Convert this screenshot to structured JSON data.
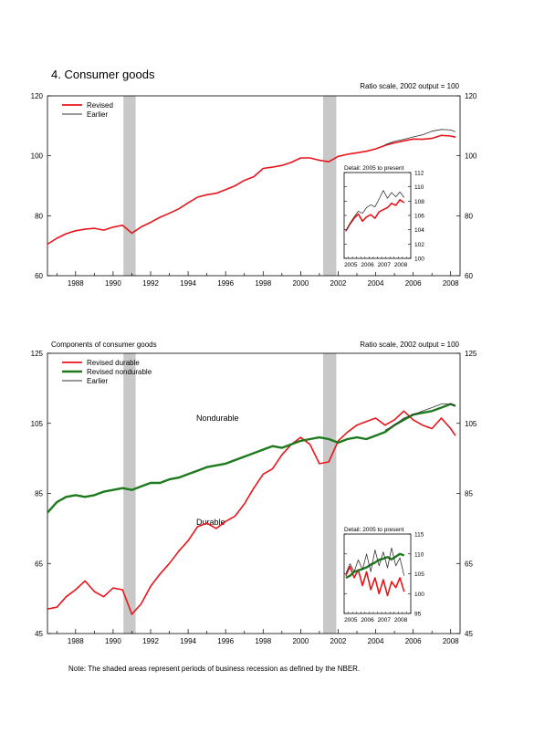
{
  "page": {
    "title": "4. Consumer goods",
    "note": "Note: The shaded areas represent periods of business recession as defined by the NBER."
  },
  "colors": {
    "revised": "#e8151b",
    "earlier": "#333333",
    "nondurable": "#1d7a1d",
    "recession": "#c8c8c8"
  },
  "chart_data": [
    {
      "type": "line",
      "scale_note": "Ratio scale, 2002 output = 100",
      "ylim": [
        60,
        120
      ],
      "yticks": [
        60,
        80,
        100,
        120
      ],
      "xlim": [
        1986.5,
        2008.5
      ],
      "xticks": [
        1988,
        1990,
        1992,
        1994,
        1996,
        1998,
        2000,
        2002,
        2004,
        2006,
        2008
      ],
      "recessions": [
        [
          1990.55,
          1991.2
        ],
        [
          2001.2,
          2001.9
        ]
      ],
      "legend": [
        "Revised",
        "Earlier"
      ],
      "series": [
        {
          "name": "Revised",
          "x": [
            1986.5,
            1987,
            1987.5,
            1988,
            1988.5,
            1989,
            1989.5,
            1990,
            1990.5,
            1991,
            1991.5,
            1992,
            1992.5,
            1993,
            1993.5,
            1994,
            1994.5,
            1995,
            1995.5,
            1996,
            1996.5,
            1997,
            1997.5,
            1998,
            1998.5,
            1999,
            1999.5,
            2000,
            2000.5,
            2001,
            2001.5,
            2002,
            2002.5,
            2003,
            2003.5,
            2004,
            2004.5,
            2005,
            2005.5,
            2006,
            2006.5,
            2007,
            2007.5,
            2008,
            2008.25
          ],
          "values": [
            70.5,
            72.5,
            74.0,
            75.0,
            75.5,
            75.8,
            75.2,
            76.2,
            76.8,
            74.2,
            76.3,
            77.8,
            79.5,
            80.8,
            82.3,
            84.3,
            86.2,
            87.0,
            87.5,
            88.7,
            90.0,
            91.8,
            93.0,
            95.8,
            96.2,
            96.8,
            97.8,
            99.3,
            99.3,
            98.5,
            98.0,
            99.8,
            100.5,
            101.0,
            101.5,
            102.3,
            103.5,
            104.3,
            105.0,
            105.6,
            105.5,
            105.8,
            106.8,
            106.6,
            106.2
          ]
        },
        {
          "name": "Earlier",
          "x": [
            2004.5,
            2005,
            2005.5,
            2006,
            2006.5,
            2007,
            2007.5,
            2008,
            2008.25
          ],
          "values": [
            103.7,
            104.8,
            105.5,
            106.3,
            107.0,
            108.2,
            108.8,
            108.6,
            108.0
          ]
        }
      ],
      "detail": {
        "label": "Detail: 2005 to present",
        "ylim": [
          100,
          112
        ],
        "yticks": [
          100,
          102,
          104,
          106,
          108,
          110,
          112
        ],
        "xlim": [
          2004.6,
          2008.6
        ],
        "xticks": [
          2005,
          2006,
          2007,
          2008
        ],
        "series": [
          {
            "name": "Revised",
            "x": [
              2004.7,
              2004.95,
              2005.2,
              2005.45,
              2005.7,
              2005.95,
              2006.2,
              2006.45,
              2006.7,
              2006.95,
              2007.2,
              2007.45,
              2007.7,
              2007.95,
              2008.2
            ],
            "values": [
              103.8,
              104.8,
              105.6,
              106.2,
              105.2,
              105.8,
              106.1,
              105.6,
              106.5,
              106.8,
              107.1,
              107.7,
              107.4,
              108.2,
              107.8
            ]
          },
          {
            "name": "Earlier",
            "x": [
              2004.7,
              2004.95,
              2005.2,
              2005.45,
              2005.7,
              2005.95,
              2006.2,
              2006.45,
              2006.7,
              2006.95,
              2007.2,
              2007.45,
              2007.7,
              2007.95,
              2008.2
            ],
            "values": [
              103.8,
              104.9,
              105.8,
              106.6,
              106.3,
              107.1,
              107.5,
              107.2,
              108.3,
              109.5,
              108.4,
              109.2,
              108.6,
              109.3,
              108.5
            ]
          }
        ]
      }
    },
    {
      "type": "line",
      "title": "Components of consumer goods",
      "scale_note": "Ratio scale, 2002 output = 100",
      "ylim": [
        45,
        125
      ],
      "yticks": [
        45,
        65,
        85,
        105,
        125
      ],
      "xlim": [
        1986.5,
        2008.5
      ],
      "xticks": [
        1988,
        1990,
        1992,
        1994,
        1996,
        1998,
        2000,
        2002,
        2004,
        2006,
        2008
      ],
      "recessions": [
        [
          1990.55,
          1991.2
        ],
        [
          2001.2,
          2001.9
        ]
      ],
      "legend": [
        "Revised durable",
        "Revised nondurable",
        "Earlier"
      ],
      "annotations": [
        "Nondurable",
        "Durable"
      ],
      "series": [
        {
          "name": "Revised durable",
          "x": [
            1986.5,
            1987,
            1987.5,
            1988,
            1988.5,
            1989,
            1989.5,
            1990,
            1990.5,
            1991,
            1991.5,
            1992,
            1992.5,
            1993,
            1993.5,
            1994,
            1994.5,
            1995,
            1995.5,
            1996,
            1996.5,
            1997,
            1997.5,
            1998,
            1998.5,
            1999,
            1999.5,
            2000,
            2000.5,
            2001,
            2001.5,
            2002,
            2002.5,
            2003,
            2003.5,
            2004,
            2004.5,
            2005,
            2005.5,
            2006,
            2006.5,
            2007,
            2007.5,
            2008,
            2008.25
          ],
          "values": [
            52.0,
            52.5,
            55.5,
            57.5,
            60.0,
            57.0,
            55.5,
            58.0,
            57.5,
            50.5,
            53.5,
            58.5,
            62.0,
            65.0,
            68.5,
            71.5,
            75.5,
            76.5,
            75.0,
            77.0,
            78.5,
            82.0,
            86.5,
            90.5,
            92.0,
            96.0,
            99.0,
            101.0,
            99.0,
            93.5,
            94.0,
            100.0,
            102.5,
            104.5,
            105.5,
            106.5,
            104.5,
            106.0,
            108.5,
            106.0,
            104.5,
            103.5,
            106.5,
            103.5,
            101.5
          ]
        },
        {
          "name": "Revised nondurable",
          "x": [
            1986.5,
            1987,
            1987.5,
            1988,
            1988.5,
            1989,
            1989.5,
            1990,
            1990.5,
            1991,
            1991.5,
            1992,
            1992.5,
            1993,
            1993.5,
            1994,
            1994.5,
            1995,
            1995.5,
            1996,
            1996.5,
            1997,
            1997.5,
            1998,
            1998.5,
            1999,
            1999.5,
            2000,
            2000.5,
            2001,
            2001.5,
            2002,
            2002.5,
            2003,
            2003.5,
            2004,
            2004.5,
            2005,
            2005.5,
            2006,
            2006.5,
            2007,
            2007.5,
            2008,
            2008.25
          ],
          "values": [
            79.5,
            82.5,
            84.0,
            84.5,
            84.0,
            84.5,
            85.5,
            86.0,
            86.5,
            86.0,
            87.0,
            88.0,
            88.0,
            89.0,
            89.5,
            90.5,
            91.5,
            92.5,
            93.0,
            93.5,
            94.5,
            95.5,
            96.5,
            97.5,
            98.5,
            98.0,
            99.0,
            100.0,
            100.5,
            101.0,
            100.5,
            99.5,
            100.5,
            101.0,
            100.5,
            101.5,
            102.5,
            104.5,
            106.0,
            107.5,
            108.0,
            108.5,
            109.5,
            110.5,
            110.0
          ]
        },
        {
          "name": "Earlier",
          "x": [
            2004.5,
            2005,
            2005.5,
            2006,
            2006.5,
            2007,
            2007.5,
            2008,
            2008.25
          ],
          "values": [
            103.0,
            104.5,
            106.5,
            107.5,
            108.5,
            109.5,
            110.5,
            110.5,
            110.0
          ]
        }
      ],
      "detail": {
        "label": "Detail: 2005 to present",
        "ylim": [
          95,
          115
        ],
        "yticks": [
          95,
          100,
          105,
          110,
          115
        ],
        "xlim": [
          2004.6,
          2008.6
        ],
        "xticks": [
          2005,
          2006,
          2007,
          2008
        ],
        "series": [
          {
            "name": "Revised durable",
            "x": [
              2004.7,
              2004.95,
              2005.2,
              2005.45,
              2005.7,
              2005.95,
              2006.2,
              2006.45,
              2006.7,
              2006.95,
              2007.2,
              2007.45,
              2007.7,
              2007.95,
              2008.2
            ],
            "values": [
              104.5,
              106.8,
              104.0,
              106.0,
              102.0,
              105.5,
              101.0,
              104.0,
              100.0,
              103.5,
              99.5,
              103.0,
              101.5,
              104.0,
              100.5
            ]
          },
          {
            "name": "Revised nondurable",
            "x": [
              2004.7,
              2004.95,
              2005.2,
              2005.45,
              2005.7,
              2005.95,
              2006.2,
              2006.45,
              2006.7,
              2006.95,
              2007.2,
              2007.45,
              2007.7,
              2007.95,
              2008.2
            ],
            "values": [
              104.0,
              104.5,
              105.5,
              105.8,
              106.2,
              106.6,
              107.3,
              107.8,
              108.5,
              108.8,
              109.2,
              108.6,
              109.3,
              110.0,
              109.6
            ]
          },
          {
            "name": "Earlier",
            "x": [
              2004.7,
              2004.95,
              2005.2,
              2005.45,
              2005.7,
              2005.95,
              2006.2,
              2006.45,
              2006.7,
              2006.95,
              2007.2,
              2007.45,
              2007.7,
              2007.95,
              2008.2
            ],
            "values": [
              105.0,
              107.5,
              105.5,
              108.5,
              106.0,
              110.0,
              105.5,
              111.0,
              107.0,
              110.5,
              106.5,
              111.5,
              107.0,
              109.0,
              104.5
            ]
          }
        ]
      }
    }
  ]
}
